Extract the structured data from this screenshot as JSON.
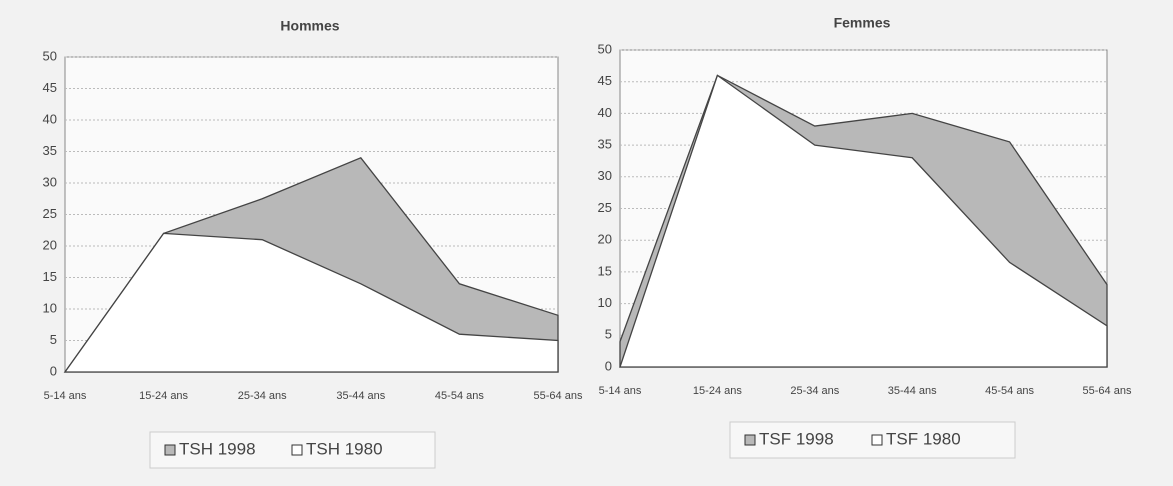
{
  "chart_data": [
    {
      "type": "area",
      "title": "Hommes",
      "categories": [
        "5-14 ans",
        "15-24 ans",
        "25-34 ans",
        "35-44 ans",
        "45-54 ans",
        "55-64 ans"
      ],
      "series": [
        {
          "name": "TSH 1998",
          "color": "#b8b8b8",
          "values": [
            0,
            22,
            27.5,
            34,
            14,
            9
          ]
        },
        {
          "name": "TSH 1980",
          "color": "#ffffff",
          "values": [
            0,
            22,
            21,
            14,
            6,
            5
          ]
        }
      ],
      "ylim": [
        0,
        50
      ],
      "yticks": [
        0,
        5,
        10,
        15,
        20,
        25,
        30,
        35,
        40,
        45,
        50
      ],
      "grid": true
    },
    {
      "type": "area",
      "title": "Femmes",
      "categories": [
        "5-14 ans",
        "15-24 ans",
        "25-34 ans",
        "35-44 ans",
        "45-54 ans",
        "55-64 ans"
      ],
      "series": [
        {
          "name": "TSF 1998",
          "color": "#b8b8b8",
          "values": [
            4,
            46,
            38,
            40,
            35.5,
            13
          ]
        },
        {
          "name": "TSF 1980",
          "color": "#ffffff",
          "values": [
            0,
            46,
            35,
            33,
            16.5,
            6.5
          ]
        }
      ],
      "ylim": [
        0,
        50
      ],
      "yticks": [
        0,
        5,
        10,
        15,
        20,
        25,
        30,
        35,
        40,
        45,
        50
      ],
      "grid": true
    }
  ]
}
